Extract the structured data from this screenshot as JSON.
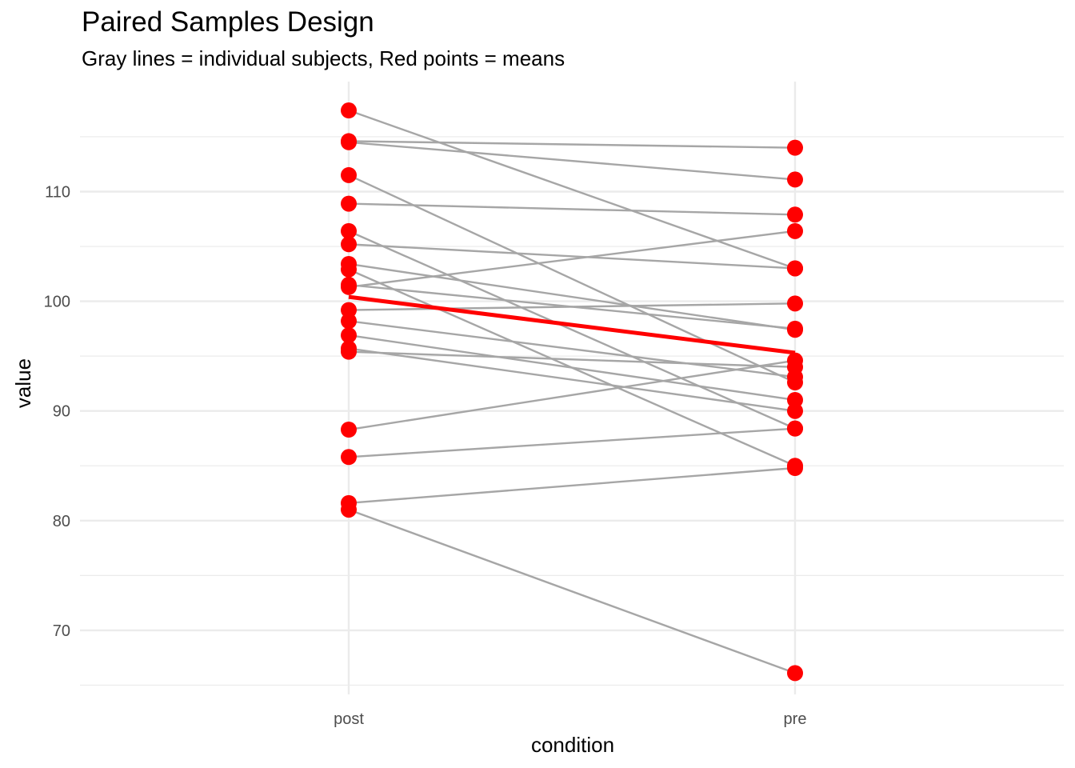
{
  "chart_data": {
    "type": "line",
    "title": "Paired Samples Design",
    "subtitle": "Gray lines = individual subjects, Red points = means",
    "xlabel": "condition",
    "ylabel": "value",
    "categories": [
      "post",
      "pre"
    ],
    "y_ticks": [
      70,
      80,
      90,
      100,
      110
    ],
    "ylim": [
      64.2,
      118.8
    ],
    "grid": true,
    "legend": "none",
    "colors": {
      "subject_line": "#a6a6a6",
      "point": "#ff0000",
      "mean_line": "#ff0000",
      "grid": "#ebebeb"
    },
    "subjects": [
      {
        "post": 117.4,
        "pre": 103.0
      },
      {
        "post": 114.6,
        "pre": 114.0
      },
      {
        "post": 114.5,
        "pre": 111.1
      },
      {
        "post": 111.5,
        "pre": 92.6
      },
      {
        "post": 108.9,
        "pre": 107.9
      },
      {
        "post": 106.4,
        "pre": 88.4
      },
      {
        "post": 105.2,
        "pre": 103.0
      },
      {
        "post": 103.4,
        "pre": 97.4
      },
      {
        "post": 102.9,
        "pre": 85.0
      },
      {
        "post": 101.3,
        "pre": 106.4
      },
      {
        "post": 101.5,
        "pre": 97.5
      },
      {
        "post": 99.2,
        "pre": 99.8
      },
      {
        "post": 98.2,
        "pre": 93.1
      },
      {
        "post": 96.9,
        "pre": 91.0
      },
      {
        "post": 95.7,
        "pre": 90.0
      },
      {
        "post": 95.4,
        "pre": 94.0
      },
      {
        "post": 88.3,
        "pre": 94.6
      },
      {
        "post": 85.8,
        "pre": 88.4
      },
      {
        "post": 81.6,
        "pre": 84.8
      },
      {
        "post": 81.0,
        "pre": 66.1
      }
    ],
    "means": {
      "post": 100.4,
      "pre": 95.3
    }
  }
}
